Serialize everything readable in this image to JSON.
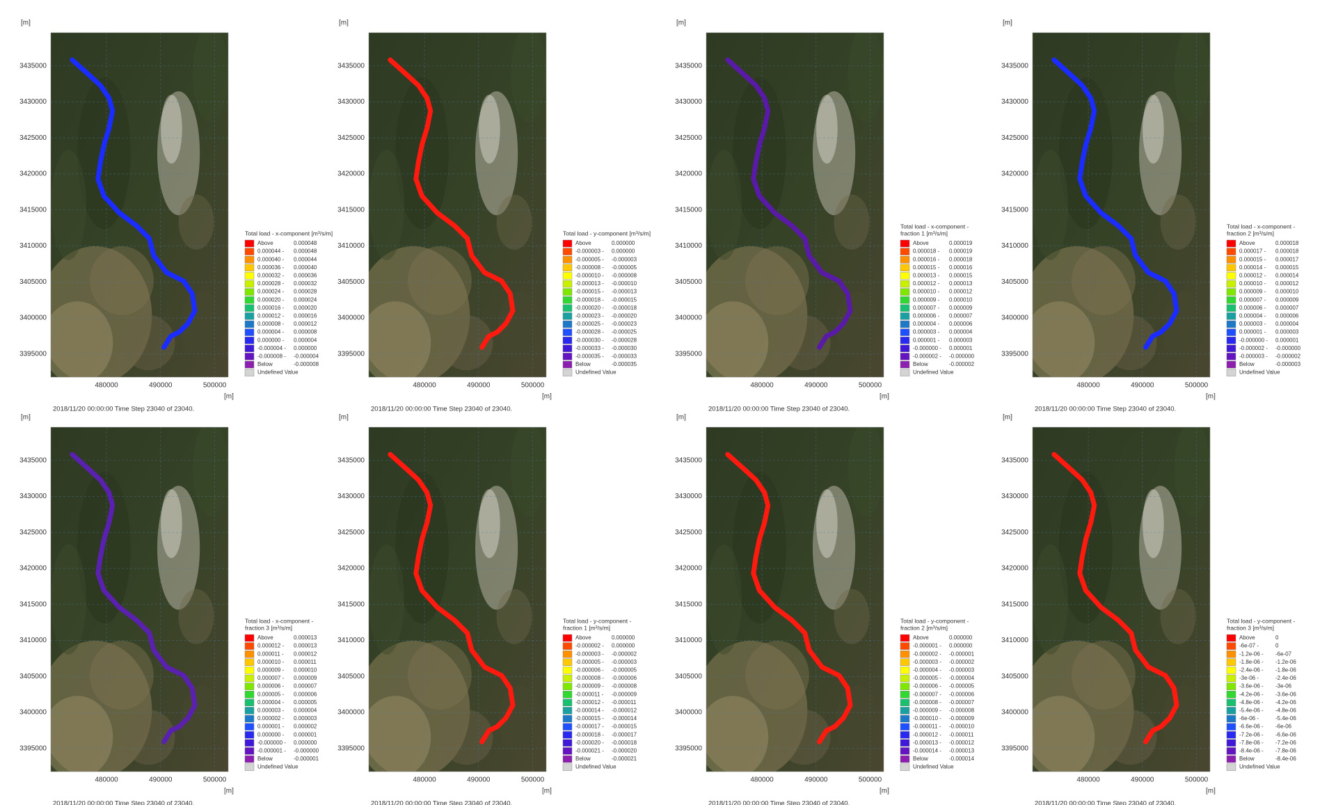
{
  "axes": {
    "unit": "[m]",
    "xlim": [
      469700,
      502500
    ],
    "ylim": [
      3391800,
      3439600
    ],
    "xticks": [
      480000,
      490000,
      500000
    ],
    "yticks": [
      3435000,
      3430000,
      3425000,
      3420000,
      3415000,
      3410000,
      3405000,
      3400000,
      3395000
    ]
  },
  "timestamp": "2018/11/20 00:00:00   Time Step 23040 of 23040.",
  "legend_colors": [
    "#ff0000",
    "#ff4a00",
    "#ff9000",
    "#ffc800",
    "#ffff00",
    "#c8f000",
    "#80e800",
    "#30d830",
    "#18c070",
    "#1aa0a0",
    "#1e78c8",
    "#1e50ff",
    "#2828f0",
    "#4018d8",
    "#6414c0",
    "#8c1eb0",
    "#d4d4d4"
  ],
  "panels": [
    {
      "river_color": "#1a2cff",
      "legend_title": [
        "Total load - x-component [m³/s/m]"
      ],
      "legend_rows": [
        [
          "Above",
          "0.000048"
        ],
        [
          "0.000044 -",
          "0.000048"
        ],
        [
          "0.000040 -",
          "0.000044"
        ],
        [
          "0.000036 -",
          "0.000040"
        ],
        [
          "0.000032 -",
          "0.000036"
        ],
        [
          "0.000028 -",
          "0.000032"
        ],
        [
          "0.000024 -",
          "0.000028"
        ],
        [
          "0.000020 -",
          "0.000024"
        ],
        [
          "0.000016 -",
          "0.000020"
        ],
        [
          "0.000012 -",
          "0.000016"
        ],
        [
          "0.000008 -",
          "0.000012"
        ],
        [
          "0.000004 -",
          "0.000008"
        ],
        [
          "0.000000 -",
          "0.000004"
        ],
        [
          "-0.000004 -",
          "0.000000"
        ],
        [
          "-0.000008 -",
          "-0.000004"
        ],
        [
          "Below",
          "-0.000008"
        ],
        [
          "Undefined Value"
        ]
      ]
    },
    {
      "river_color": "#ff1a10",
      "legend_title": [
        "Total load - y-component [m³/s/m]"
      ],
      "legend_rows": [
        [
          "Above",
          "0.000000"
        ],
        [
          "-0.000003 -",
          "0.000000"
        ],
        [
          "-0.000005 -",
          "-0.000003"
        ],
        [
          "-0.000008 -",
          "-0.000005"
        ],
        [
          "-0.000010 -",
          "-0.000008"
        ],
        [
          "-0.000013 -",
          "-0.000010"
        ],
        [
          "-0.000015 -",
          "-0.000013"
        ],
        [
          "-0.000018 -",
          "-0.000015"
        ],
        [
          "-0.000020 -",
          "-0.000018"
        ],
        [
          "-0.000023 -",
          "-0.000020"
        ],
        [
          "-0.000025 -",
          "-0.000023"
        ],
        [
          "-0.000028 -",
          "-0.000025"
        ],
        [
          "-0.000030 -",
          "-0.000028"
        ],
        [
          "-0.000033 -",
          "-0.000030"
        ],
        [
          "-0.000035 -",
          "-0.000033"
        ],
        [
          "Below",
          "-0.000035"
        ],
        [
          "Undefined Value"
        ]
      ]
    },
    {
      "river_color": "#5a1aa8",
      "legend_title": [
        "Total load - x-component -",
        "fraction 1 [m³/s/m]"
      ],
      "legend_rows": [
        [
          "Above",
          "0.000019"
        ],
        [
          "0.000018 -",
          "0.000019"
        ],
        [
          "0.000016 -",
          "0.000018"
        ],
        [
          "0.000015 -",
          "0.000016"
        ],
        [
          "0.000013 -",
          "0.000015"
        ],
        [
          "0.000012 -",
          "0.000013"
        ],
        [
          "0.000010 -",
          "0.000012"
        ],
        [
          "0.000009 -",
          "0.000010"
        ],
        [
          "0.000007 -",
          "0.000009"
        ],
        [
          "0.000006 -",
          "0.000007"
        ],
        [
          "0.000004 -",
          "0.000006"
        ],
        [
          "0.000003 -",
          "0.000004"
        ],
        [
          "0.000001 -",
          "0.000003"
        ],
        [
          "-0.000000 -",
          "0.000001"
        ],
        [
          "-0.000002 -",
          "-0.000000"
        ],
        [
          "Below",
          "-0.000002"
        ],
        [
          "Undefined Value"
        ]
      ]
    },
    {
      "river_color": "#1a2cff",
      "legend_title": [
        "Total load - x-component -",
        "fraction 2 [m³/s/m]"
      ],
      "legend_rows": [
        [
          "Above",
          "0.000018"
        ],
        [
          "0.000017 -",
          "0.000018"
        ],
        [
          "0.000015 -",
          "0.000017"
        ],
        [
          "0.000014 -",
          "0.000015"
        ],
        [
          "0.000012 -",
          "0.000014"
        ],
        [
          "0.000010 -",
          "0.000012"
        ],
        [
          "0.000009 -",
          "0.000010"
        ],
        [
          "0.000007 -",
          "0.000009"
        ],
        [
          "0.000006 -",
          "0.000007"
        ],
        [
          "0.000004 -",
          "0.000006"
        ],
        [
          "0.000003 -",
          "0.000004"
        ],
        [
          "0.000001 -",
          "0.000003"
        ],
        [
          "-0.000000 -",
          "0.000001"
        ],
        [
          "-0.000002 -",
          "-0.000000"
        ],
        [
          "-0.000003 -",
          "-0.000002"
        ],
        [
          "Below",
          "-0.000003"
        ],
        [
          "Undefined Value"
        ]
      ]
    },
    {
      "river_color": "#5a20b0",
      "legend_title": [
        "Total load - x-component -",
        "fraction 3 [m³/s/m]"
      ],
      "legend_rows": [
        [
          "Above",
          "0.000013"
        ],
        [
          "0.000012 -",
          "0.000013"
        ],
        [
          "0.000011 -",
          "0.000012"
        ],
        [
          "0.000010 -",
          "0.000011"
        ],
        [
          "0.000009 -",
          "0.000010"
        ],
        [
          "0.000007 -",
          "0.000009"
        ],
        [
          "0.000006 -",
          "0.000007"
        ],
        [
          "0.000005 -",
          "0.000006"
        ],
        [
          "0.000004 -",
          "0.000005"
        ],
        [
          "0.000003 -",
          "0.000004"
        ],
        [
          "0.000002 -",
          "0.000003"
        ],
        [
          "0.000001 -",
          "0.000002"
        ],
        [
          "0.000000 -",
          "0.000001"
        ],
        [
          "-0.000000 -",
          "0.000000"
        ],
        [
          "-0.000001 -",
          "-0.000000"
        ],
        [
          "Below",
          "-0.000001"
        ],
        [
          "Undefined Value"
        ]
      ]
    },
    {
      "river_color": "#ff1a10",
      "legend_title": [
        "Total load - y-component -",
        "fraction 1 [m³/s/m]"
      ],
      "legend_rows": [
        [
          "Above",
          "0.000000"
        ],
        [
          "-0.000002 -",
          "0.000000"
        ],
        [
          "-0.000003 -",
          "-0.000002"
        ],
        [
          "-0.000005 -",
          "-0.000003"
        ],
        [
          "-0.000006 -",
          "-0.000005"
        ],
        [
          "-0.000008 -",
          "-0.000006"
        ],
        [
          "-0.000009 -",
          "-0.000008"
        ],
        [
          "-0.000011 -",
          "-0.000009"
        ],
        [
          "-0.000012 -",
          "-0.000011"
        ],
        [
          "-0.000014 -",
          "-0.000012"
        ],
        [
          "-0.000015 -",
          "-0.000014"
        ],
        [
          "-0.000017 -",
          "-0.000015"
        ],
        [
          "-0.000018 -",
          "-0.000017"
        ],
        [
          "-0.000020 -",
          "-0.000018"
        ],
        [
          "-0.000021 -",
          "-0.000020"
        ],
        [
          "Below",
          "-0.000021"
        ],
        [
          "Undefined Value"
        ]
      ]
    },
    {
      "river_color": "#ff1a10",
      "legend_title": [
        "Total load - y-component -",
        "fraction 2 [m³/s/m]"
      ],
      "legend_rows": [
        [
          "Above",
          "0.000000"
        ],
        [
          "-0.000001 -",
          "0.000000"
        ],
        [
          "-0.000002 -",
          "-0.000001"
        ],
        [
          "-0.000003 -",
          "-0.000002"
        ],
        [
          "-0.000004 -",
          "-0.000003"
        ],
        [
          "-0.000005 -",
          "-0.000004"
        ],
        [
          "-0.000006 -",
          "-0.000005"
        ],
        [
          "-0.000007 -",
          "-0.000006"
        ],
        [
          "-0.000008 -",
          "-0.000007"
        ],
        [
          "-0.000009 -",
          "-0.000008"
        ],
        [
          "-0.000010 -",
          "-0.000009"
        ],
        [
          "-0.000011 -",
          "-0.000010"
        ],
        [
          "-0.000012 -",
          "-0.000011"
        ],
        [
          "-0.000013 -",
          "-0.000012"
        ],
        [
          "-0.000014 -",
          "-0.000013"
        ],
        [
          "Below",
          "-0.000014"
        ],
        [
          "Undefined Value"
        ]
      ]
    },
    {
      "river_color": "#ff1a10",
      "legend_title": [
        "Total load - y-component -",
        "fraction 3 [m³/s/m]"
      ],
      "legend_rows": [
        [
          "Above",
          "0"
        ],
        [
          "-6e-07 -",
          "0"
        ],
        [
          "-1.2e-06 -",
          "-6e-07"
        ],
        [
          "-1.8e-06 -",
          "-1.2e-06"
        ],
        [
          "-2.4e-06 -",
          "-1.8e-06"
        ],
        [
          "-3e-06 -",
          "-2.4e-06"
        ],
        [
          "-3.6e-06 -",
          "-3e-06"
        ],
        [
          "-4.2e-06 -",
          "-3.6e-06"
        ],
        [
          "-4.8e-06 -",
          "-4.2e-06"
        ],
        [
          "-5.4e-06 -",
          "-4.8e-06"
        ],
        [
          "-6e-06 -",
          "-5.4e-06"
        ],
        [
          "-6.6e-06 -",
          "-6e-06"
        ],
        [
          "-7.2e-06 -",
          "-6.6e-06"
        ],
        [
          "-7.8e-06 -",
          "-7.2e-06"
        ],
        [
          "-8.4e-06 -",
          "-7.8e-06"
        ],
        [
          "Below",
          "-8.4e-06"
        ],
        [
          "Undefined Value"
        ]
      ]
    }
  ]
}
